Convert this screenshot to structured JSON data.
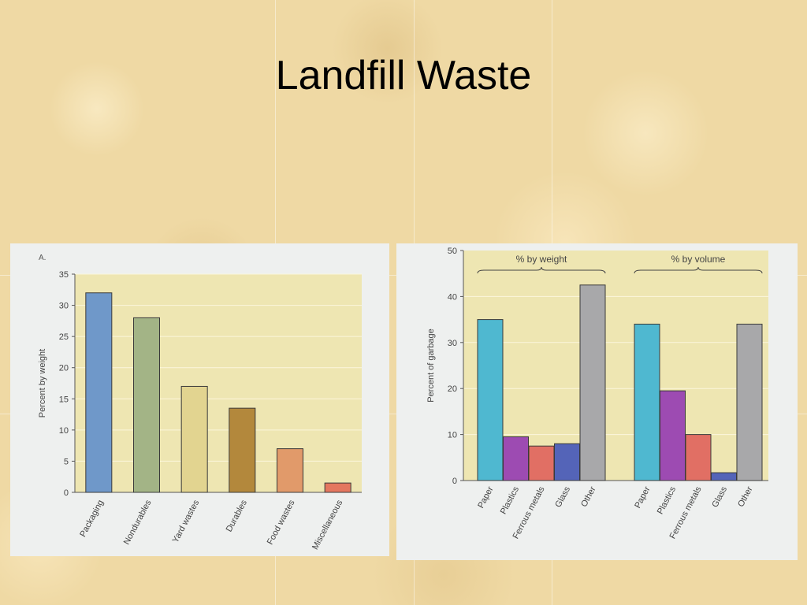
{
  "slide": {
    "title": "Landfill Waste"
  },
  "colors": {
    "plot_background": "#eee6b2",
    "panel_background": "#eef0ef"
  },
  "chart_data": [
    {
      "type": "bar",
      "panel_label": "A.",
      "categories": [
        "Packaging",
        "Nondurables",
        "Yard wastes",
        "Durables",
        "Food wastes",
        "Miscellaneous"
      ],
      "values": [
        32,
        28,
        17,
        13.5,
        7,
        1.5
      ],
      "colors": [
        "#6f98c9",
        "#a3b486",
        "#e2d490",
        "#b3883c",
        "#e19a6a",
        "#e4775f"
      ],
      "xlabel": "",
      "ylabel": "Percent  by weight",
      "ylim": [
        0,
        35
      ],
      "yticks": [
        0,
        5,
        10,
        15,
        20,
        25,
        30,
        35
      ],
      "grid": true
    },
    {
      "type": "bar",
      "ylabel": "Percent of garbage",
      "ylim": [
        0,
        50
      ],
      "yticks": [
        0,
        10,
        20,
        30,
        40,
        50
      ],
      "grid": true,
      "groups": [
        {
          "label": "% by weight",
          "categories": [
            "Paper",
            "Plastics",
            "Ferrous metals",
            "Glass",
            "Other"
          ],
          "values": [
            35,
            9.5,
            7.5,
            8,
            42.5
          ]
        },
        {
          "label": "% by volume",
          "categories": [
            "Paper",
            "Plastics",
            "Ferrous metals",
            "Glass",
            "Other"
          ],
          "values": [
            34,
            19.5,
            10,
            1.7,
            34
          ]
        }
      ],
      "colors": [
        "#4fb8d0",
        "#9d4bb2",
        "#e16f64",
        "#5464b8",
        "#a8a8aa"
      ]
    }
  ]
}
